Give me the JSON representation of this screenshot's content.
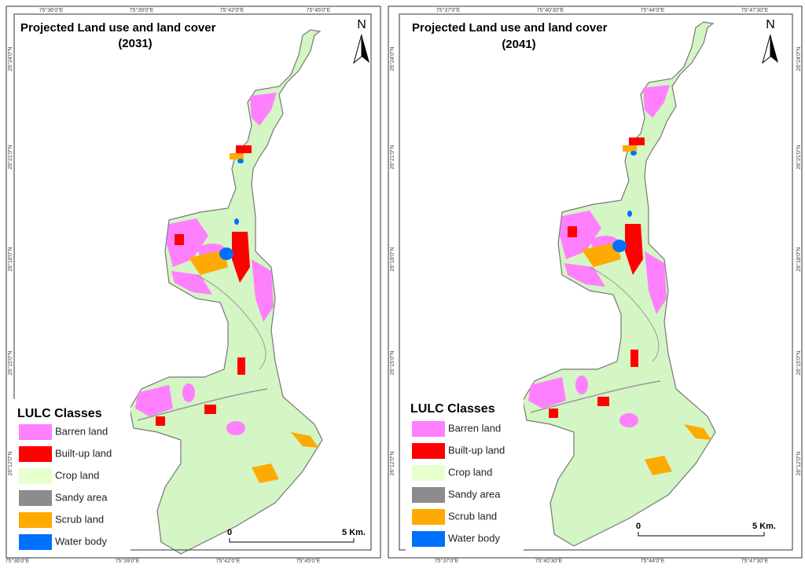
{
  "panels": [
    {
      "title": "Projected Land use and land cover",
      "year": "(2031)",
      "north": "N",
      "top_labels": [
        "75°36'0\"E",
        "75°39'0\"E",
        "75°42'0\"E",
        "75°45'0\"E"
      ],
      "bottom_labels": [
        "75°36'0\"E",
        "75°39'0\"E",
        "75°42'0\"E",
        "75°45'0\"E"
      ],
      "left_labels": [
        "26°24'0\"N",
        "26°21'0\"N",
        "26°18'0\"N",
        "26°15'0\"N",
        "26°12'0\"N"
      ],
      "right_labels": [],
      "scale_start": "0",
      "scale_end": "5 Km."
    },
    {
      "title": "Projected Land use and land cover",
      "year": "(2041)",
      "north": "N",
      "top_labels": [
        "75°37'0\"E",
        "75°40'30\"E",
        "75°44'0\"E",
        "75°47'30\"E"
      ],
      "bottom_labels": [
        "75°37'0\"E",
        "75°40'30\"E",
        "75°44'0\"E",
        "75°47'30\"E"
      ],
      "left_labels": [
        "26°24'0\"N",
        "26°21'0\"N",
        "26°18'0\"N",
        "26°15'0\"N",
        "26°12'0\"N"
      ],
      "right_labels": [
        "26°24'0\"N",
        "26°21'0\"N",
        "26°18'0\"N",
        "26°15'0\"N",
        "26°12'0\"N"
      ],
      "scale_start": "0",
      "scale_end": "5 Km."
    }
  ],
  "legend": {
    "title": "LULC Classes",
    "items": [
      {
        "label": "Barren land",
        "color": "#ff80ff"
      },
      {
        "label": "Built-up land",
        "color": "#ff0000"
      },
      {
        "label": "Crop land",
        "color": "#e6ffcc"
      },
      {
        "label": "Sandy area",
        "color": "#8c8c8c"
      },
      {
        "label": "Scrub land",
        "color": "#ffaa00"
      },
      {
        "label": "Water body",
        "color": "#0070ff"
      }
    ]
  }
}
